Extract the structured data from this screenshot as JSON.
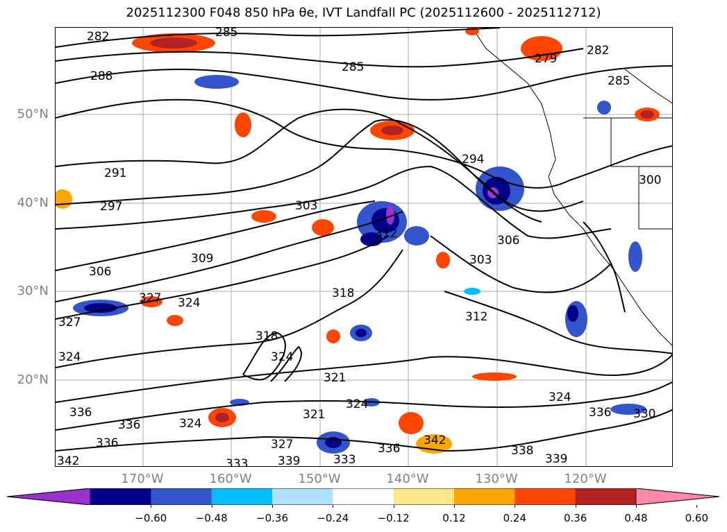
{
  "title": {
    "text": "2025112300 F048 850 hPa θe, IVT Landfall PC (2025112600 - 2025112712)"
  },
  "map": {
    "lat_labels": [
      "50°N",
      "40°N",
      "30°N",
      "20°N"
    ],
    "lon_labels": [
      "170°W",
      "160°W",
      "150°W",
      "140°W",
      "130°W",
      "120°W"
    ],
    "contour_labels": [
      "282",
      "285",
      "288",
      "285",
      "279",
      "282",
      "285",
      "291",
      "297",
      "294",
      "300",
      "303",
      "306",
      "309",
      "303",
      "306",
      "312",
      "318",
      "324",
      "327",
      "327",
      "324",
      "318",
      "324",
      "321",
      "312",
      "324",
      "336",
      "336",
      "324",
      "321",
      "324",
      "327",
      "336",
      "342",
      "333",
      "339",
      "333",
      "338",
      "339",
      "330",
      "336",
      "342",
      "336"
    ]
  },
  "colorbar": {
    "colors": [
      "#9933cc",
      "#00008b",
      "#3355cc",
      "#00bfff",
      "#b0e2ff",
      "#ffffff",
      "#ffe88a",
      "#ffa500",
      "#ff4500",
      "#b22222",
      "#ff88aa"
    ],
    "ticks": [
      "−0.60",
      "−0.48",
      "−0.36",
      "−0.24",
      "−0.12",
      "0.12",
      "0.24",
      "0.36",
      "0.48",
      "0.60"
    ]
  }
}
